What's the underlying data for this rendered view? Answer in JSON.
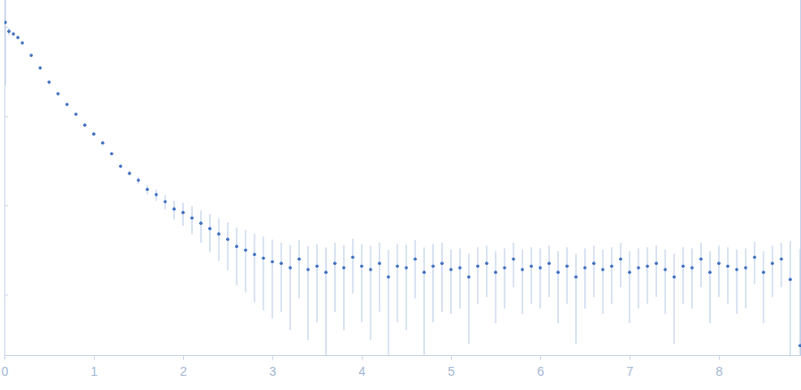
{
  "chart_data": {
    "type": "scatter",
    "marker": "circle",
    "color": "#3f6fc0",
    "log": "y",
    "tick_labels": "x",
    "xlim": [
      0,
      8.92
    ],
    "ylim": [
      0.00021,
      2.0
    ],
    "xticks": [
      0,
      1,
      2,
      3,
      4,
      5,
      6,
      7,
      8
    ],
    "yticks": [
      0.001,
      0.01,
      0.1,
      1
    ],
    "x": [
      0.01,
      0.05,
      0.1,
      0.15,
      0.2,
      0.3,
      0.4,
      0.5,
      0.6,
      0.7,
      0.8,
      0.9,
      1.0,
      1.1,
      1.2,
      1.3,
      1.4,
      1.5,
      1.6,
      1.7,
      1.8,
      1.9,
      2.0,
      2.1,
      2.2,
      2.3,
      2.4,
      2.5,
      2.6,
      2.7,
      2.8,
      2.9,
      3.0,
      3.1,
      3.2,
      3.3,
      3.4,
      3.5,
      3.6,
      3.7,
      3.8,
      3.9,
      4.0,
      4.1,
      4.2,
      4.3,
      4.4,
      4.5,
      4.6,
      4.7,
      4.8,
      4.9,
      5.0,
      5.1,
      5.2,
      5.3,
      5.4,
      5.5,
      5.6,
      5.7,
      5.8,
      5.9,
      6.0,
      6.1,
      6.2,
      6.3,
      6.4,
      6.5,
      6.6,
      6.7,
      6.8,
      6.9,
      7.0,
      7.1,
      7.2,
      7.3,
      7.4,
      7.5,
      7.6,
      7.7,
      7.8,
      7.9,
      8.0,
      8.1,
      8.2,
      8.3,
      8.4,
      8.5,
      8.6,
      8.7,
      8.8,
      8.91
    ],
    "values": [
      1.122,
      0.891,
      0.832,
      0.759,
      0.661,
      0.479,
      0.347,
      0.24,
      0.178,
      0.135,
      0.105,
      0.0794,
      0.0631,
      0.0501,
      0.038,
      0.0275,
      0.0229,
      0.0191,
      0.0151,
      0.0132,
      0.011,
      0.00912,
      0.00832,
      0.00724,
      0.00631,
      0.0055,
      0.00479,
      0.00417,
      0.00347,
      0.00316,
      0.00282,
      0.00257,
      0.00234,
      0.00224,
      0.002,
      0.00251,
      0.00191,
      0.00209,
      0.00178,
      0.00224,
      0.002,
      0.00263,
      0.00209,
      0.00191,
      0.00224,
      0.00158,
      0.00209,
      0.002,
      0.00251,
      0.00178,
      0.00209,
      0.00224,
      0.00191,
      0.002,
      0.00158,
      0.00209,
      0.00224,
      0.00178,
      0.002,
      0.00251,
      0.00191,
      0.00209,
      0.002,
      0.00224,
      0.00178,
      0.00209,
      0.00158,
      0.002,
      0.00224,
      0.00191,
      0.00209,
      0.00251,
      0.00178,
      0.002,
      0.00209,
      0.00224,
      0.00191,
      0.00158,
      0.00209,
      0.002,
      0.00251,
      0.00178,
      0.00224,
      0.00209,
      0.00191,
      0.002,
      0.00263,
      0.00178,
      0.00224,
      0.00251,
      0.00148,
      0.000269
    ],
    "errors": [
      0.9,
      0.08,
      0.02,
      0.012,
      0.008,
      0.005,
      0.004,
      0.003,
      0.0025,
      0.002,
      0.0018,
      0.0015,
      0.0013,
      0.0013,
      0.0014,
      0.0015,
      0.0016,
      0.0017,
      0.0018,
      0.0019,
      0.002,
      0.0022,
      0.0024,
      0.0025,
      0.0025,
      0.0025,
      0.0024,
      0.0023,
      0.0022,
      0.0021,
      0.002,
      0.0019,
      0.0018,
      0.0016,
      0.0016,
      0.0016,
      0.0016,
      0.0016,
      0.0016,
      0.0016,
      0.0016,
      0.0016,
      0.0016,
      0.0016,
      0.0016,
      0.0016,
      0.0016,
      0.0016,
      0.0016,
      0.0016,
      0.0016,
      0.0016,
      0.0013,
      0.0013,
      0.0013,
      0.0013,
      0.0013,
      0.0013,
      0.0013,
      0.0013,
      0.0013,
      0.0013,
      0.0013,
      0.0013,
      0.0013,
      0.0013,
      0.0013,
      0.0013,
      0.0013,
      0.0013,
      0.0013,
      0.0013,
      0.0013,
      0.0013,
      0.0013,
      0.0013,
      0.0013,
      0.0013,
      0.0013,
      0.0013,
      0.0013,
      0.0013,
      0.0013,
      0.0013,
      0.0013,
      0.0013,
      0.0013,
      0.0013,
      0.0013,
      0.0013,
      0.0025,
      0.003
    ]
  }
}
